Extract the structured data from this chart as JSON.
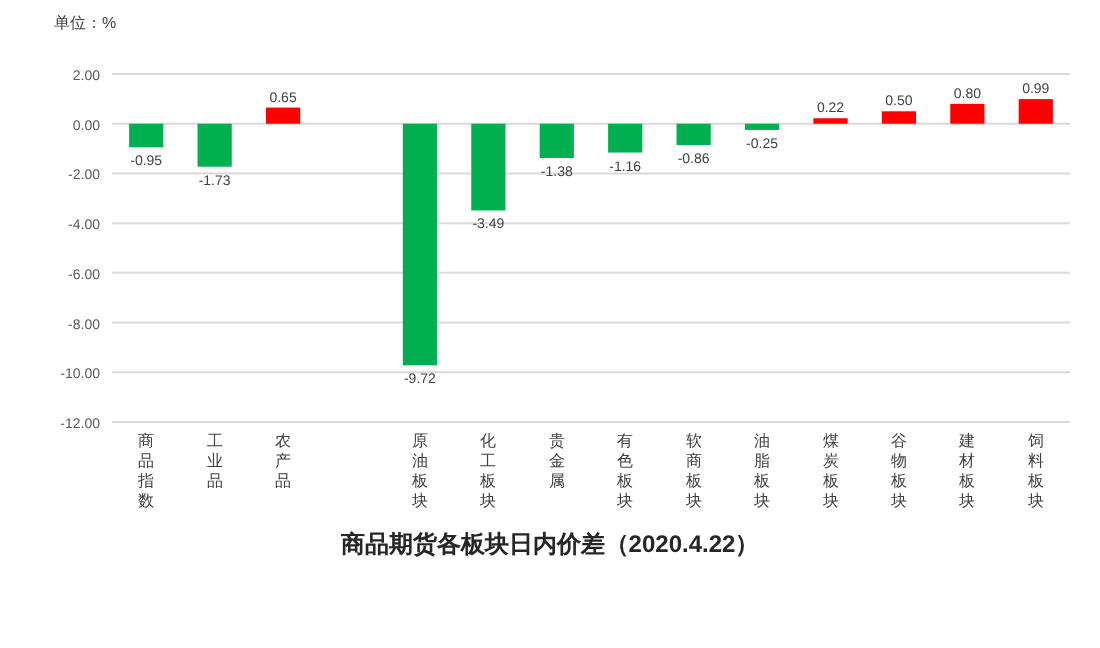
{
  "chart_data": {
    "type": "bar",
    "title": "商品期货各板块日内价差（2020.4.22）",
    "annotations": [
      "单位：%"
    ],
    "categories": [
      "商品指数",
      "工业品",
      "农产品",
      null,
      "原油板块",
      "化工板块",
      "贵金属",
      "有色板块",
      "软商板块",
      "油脂板块",
      "煤炭板块",
      "谷物板块",
      "建材板块",
      "饲料板块"
    ],
    "values": [
      -0.95,
      -1.73,
      0.65,
      null,
      -9.72,
      -3.49,
      -1.38,
      -1.16,
      -0.86,
      -0.25,
      0.22,
      0.5,
      0.8,
      0.99
    ],
    "colors": [
      "#00b050",
      "#00b050",
      "#ff0000",
      null,
      "#00b050",
      "#00b050",
      "#00b050",
      "#00b050",
      "#00b050",
      "#00b050",
      "#ff0000",
      "#ff0000",
      "#ff0000",
      "#ff0000"
    ],
    "value_labels": [
      "-0.95",
      "-1.73",
      "0.65",
      null,
      "-9.72",
      "-3.49",
      "-1.38",
      "-1.16",
      "-0.86",
      "-0.25",
      "0.22",
      "0.50",
      "0.80",
      "0.99"
    ],
    "ylim": [
      -12,
      2
    ],
    "yticks": [
      {
        "value": 2,
        "label": "2.00"
      },
      {
        "value": 0,
        "label": "0.00"
      },
      {
        "value": -2,
        "label": "-2.00"
      },
      {
        "value": -4,
        "label": "-4.00"
      },
      {
        "value": -6,
        "label": "-6.00"
      },
      {
        "value": -8,
        "label": "-8.00"
      },
      {
        "value": -10,
        "label": "-10.00"
      },
      {
        "value": -12,
        "label": "-12.00"
      }
    ],
    "grid": "y"
  }
}
